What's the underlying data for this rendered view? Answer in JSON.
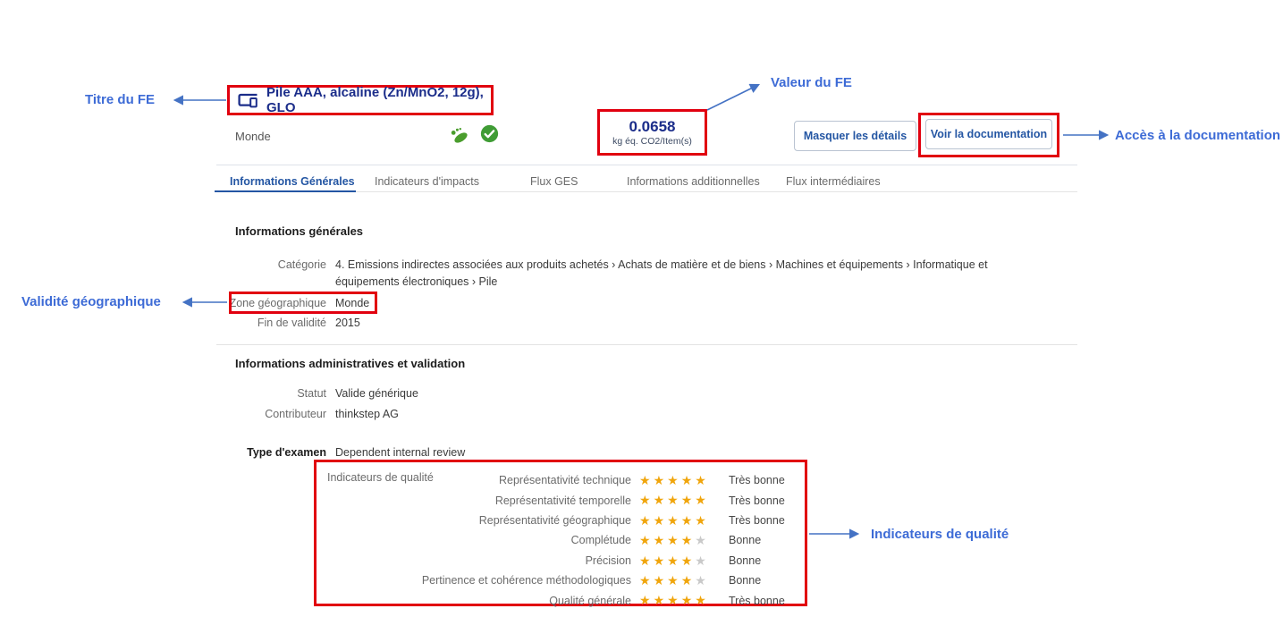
{
  "header": {
    "title": "Pile AAA, alcaline (Zn/MnO2, 12g), GLO",
    "geography": "Monde",
    "value": "0.0658",
    "unit": "kg éq. CO2/Item(s)",
    "hide_details_button": "Masquer les détails",
    "view_documentation_button": "Voir la documentation"
  },
  "annotations": {
    "title_label": "Titre du FE",
    "value_label": "Valeur du FE",
    "documentation_label": "Accès à la documentation",
    "geographic_label": "Validité géographique",
    "quality_label": "Indicateurs de qualité"
  },
  "tabs": [
    {
      "label": "Informations Générales",
      "active": true
    },
    {
      "label": "Indicateurs d'impacts",
      "active": false
    },
    {
      "label": "Flux GES",
      "active": false
    },
    {
      "label": "Informations additionnelles",
      "active": false
    },
    {
      "label": "Flux intermédiaires",
      "active": false
    }
  ],
  "general_info": {
    "heading": "Informations générales",
    "category_label": "Catégorie",
    "category_value": "4. Emissions indirectes associées aux produits achetés  ›  Achats de matière et de biens  ›  Machines et équipements  ›  Informatique et équipements électroniques  ›  Pile",
    "zone_label": "Zone géographique",
    "zone_value": "Monde",
    "validity_label": "Fin de validité",
    "validity_value": "2015"
  },
  "admin_info": {
    "heading": "Informations administratives et validation",
    "status_label": "Statut",
    "status_value": "Valide générique",
    "contributor_label": "Contributeur",
    "contributor_value": "thinkstep AG",
    "review_label": "Type d'examen",
    "review_value": "Dependent internal review"
  },
  "quality": {
    "caption": "Indicateurs de qualité",
    "rows": [
      {
        "label": "Représentativité technique",
        "stars": 5,
        "rating": "Très bonne"
      },
      {
        "label": "Représentativité temporelle",
        "stars": 5,
        "rating": "Très bonne"
      },
      {
        "label": "Représentativité géographique",
        "stars": 5,
        "rating": "Très bonne"
      },
      {
        "label": "Complétude",
        "stars": 4,
        "rating": "Bonne"
      },
      {
        "label": "Précision",
        "stars": 4,
        "rating": "Bonne"
      },
      {
        "label": "Pertinence et cohérence méthodologiques",
        "stars": 4,
        "rating": "Bonne"
      },
      {
        "label": "Qualité générale",
        "stars": 5,
        "rating": "Très bonne"
      }
    ]
  },
  "colors": {
    "highlight_red": "#e1000f",
    "annotation_blue": "#3d6bd6",
    "arrow_blue": "#4472c4",
    "navy": "#1b2d8a",
    "action_blue": "#2456a3",
    "star_gold": "#f0a50c",
    "star_gray": "#c9c9c9",
    "success_green": "#3f9c35"
  }
}
